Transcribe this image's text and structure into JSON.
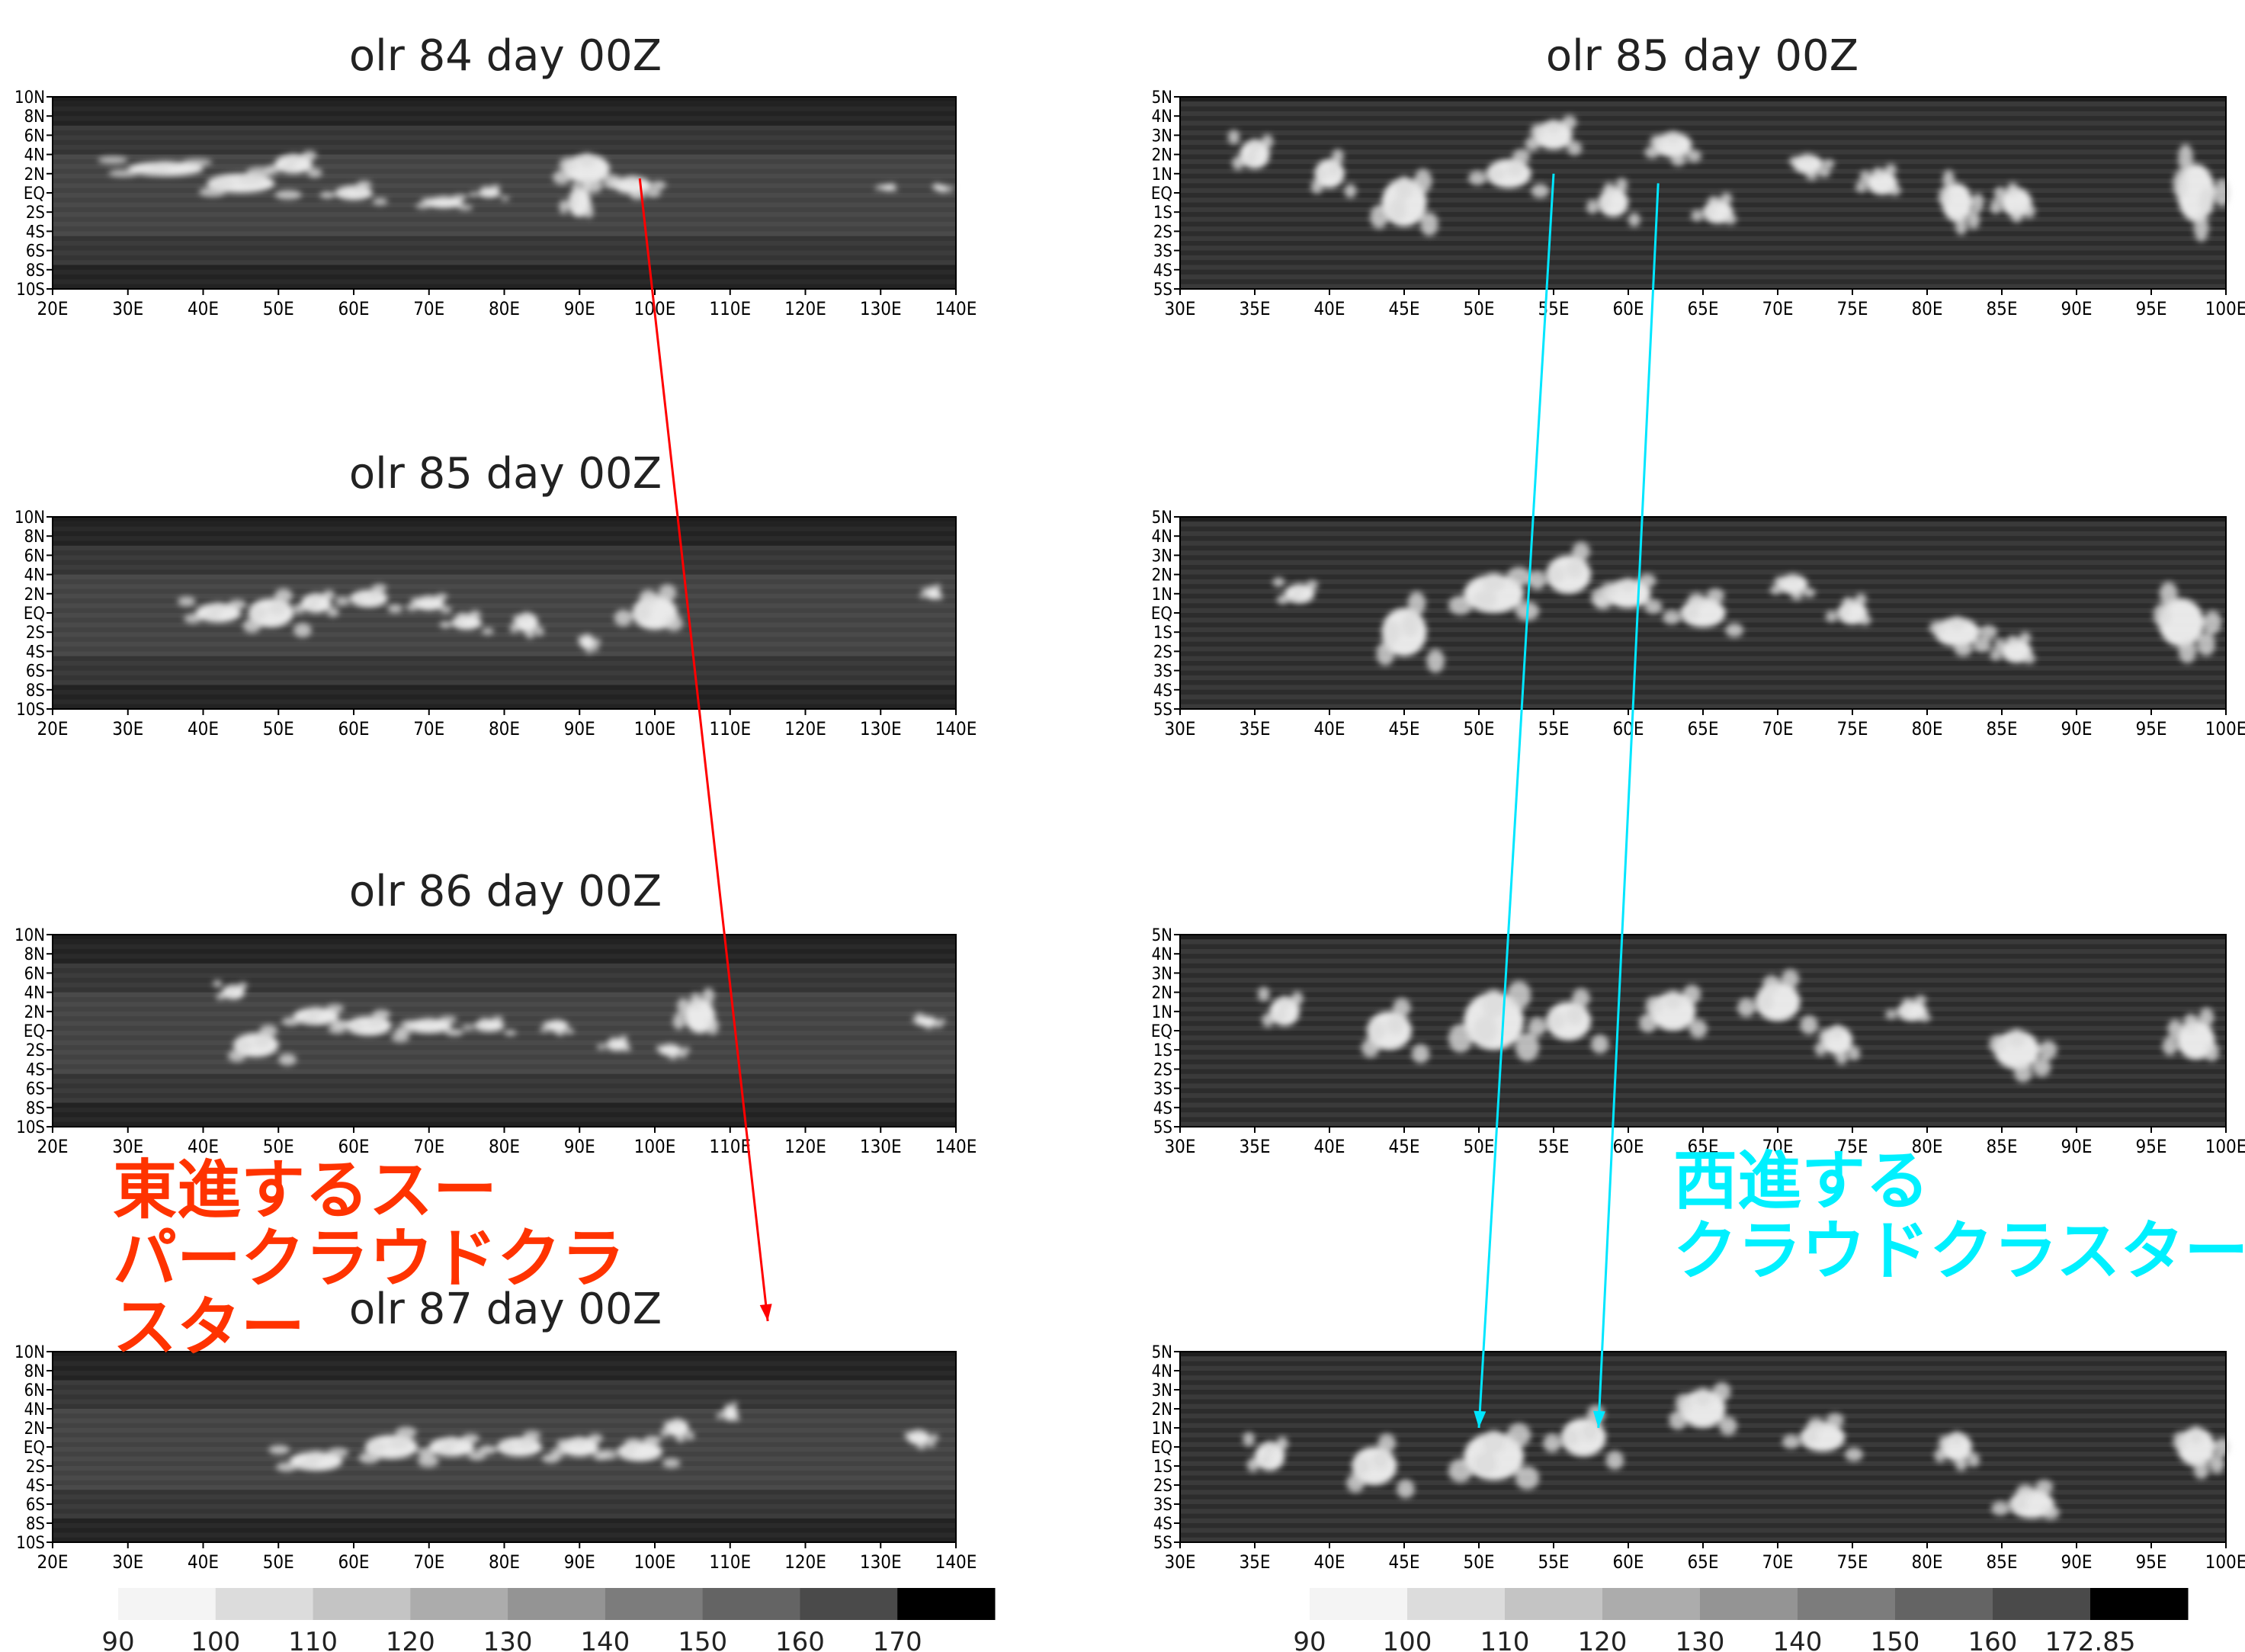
{
  "chart_data": {
    "type": "heatmap",
    "variable": "olr",
    "panels": [
      {
        "id": "L1",
        "title": "olr 84 day 00Z",
        "x_labels": [
          "20E",
          "30E",
          "40E",
          "50E",
          "60E",
          "70E",
          "80E",
          "90E",
          "100E",
          "110E",
          "120E",
          "130E",
          "140E"
        ],
        "y_labels": [
          "10N",
          "8N",
          "6N",
          "4N",
          "2N",
          "EQ",
          "2S",
          "4S",
          "6S",
          "8S",
          "10S"
        ],
        "xlim": [
          20,
          140
        ],
        "ylim": [
          -10,
          10
        ]
      },
      {
        "id": "L2",
        "title": "olr 85 day 00Z",
        "x_labels": [
          "20E",
          "30E",
          "40E",
          "50E",
          "60E",
          "70E",
          "80E",
          "90E",
          "100E",
          "110E",
          "120E",
          "130E",
          "140E"
        ],
        "y_labels": [
          "10N",
          "8N",
          "6N",
          "4N",
          "2N",
          "EQ",
          "2S",
          "4S",
          "6S",
          "8S",
          "10S"
        ],
        "xlim": [
          20,
          140
        ],
        "ylim": [
          -10,
          10
        ]
      },
      {
        "id": "L3",
        "title": "olr 86 day 00Z",
        "x_labels": [
          "20E",
          "30E",
          "40E",
          "50E",
          "60E",
          "70E",
          "80E",
          "90E",
          "100E",
          "110E",
          "120E",
          "130E",
          "140E"
        ],
        "y_labels": [
          "10N",
          "8N",
          "6N",
          "4N",
          "2N",
          "EQ",
          "2S",
          "4S",
          "6S",
          "8S",
          "10S"
        ],
        "xlim": [
          20,
          140
        ],
        "ylim": [
          -10,
          10
        ]
      },
      {
        "id": "L4",
        "title": "olr 87 day 00Z",
        "x_labels": [
          "20E",
          "30E",
          "40E",
          "50E",
          "60E",
          "70E",
          "80E",
          "90E",
          "100E",
          "110E",
          "120E",
          "130E",
          "140E"
        ],
        "y_labels": [
          "10N",
          "8N",
          "6N",
          "4N",
          "2N",
          "EQ",
          "2S",
          "4S",
          "6S",
          "8S",
          "10S"
        ],
        "xlim": [
          20,
          140
        ],
        "ylim": [
          -10,
          10
        ]
      },
      {
        "id": "R1",
        "title": "olr 85 day 00Z",
        "x_labels": [
          "30E",
          "35E",
          "40E",
          "45E",
          "50E",
          "55E",
          "60E",
          "65E",
          "70E",
          "75E",
          "80E",
          "85E",
          "90E",
          "95E",
          "100E"
        ],
        "y_labels": [
          "5N",
          "4N",
          "3N",
          "2N",
          "1N",
          "EQ",
          "1S",
          "2S",
          "3S",
          "4S",
          "5S"
        ],
        "xlim": [
          30,
          100
        ],
        "ylim": [
          -5,
          5
        ]
      },
      {
        "id": "R2",
        "title": "",
        "x_labels": [
          "30E",
          "35E",
          "40E",
          "45E",
          "50E",
          "55E",
          "60E",
          "65E",
          "70E",
          "75E",
          "80E",
          "85E",
          "90E",
          "95E",
          "100E"
        ],
        "y_labels": [
          "5N",
          "4N",
          "3N",
          "2N",
          "1N",
          "EQ",
          "1S",
          "2S",
          "3S",
          "4S",
          "5S"
        ],
        "xlim": [
          30,
          100
        ],
        "ylim": [
          -5,
          5
        ]
      },
      {
        "id": "R3",
        "title": "",
        "x_labels": [
          "30E",
          "35E",
          "40E",
          "45E",
          "50E",
          "55E",
          "60E",
          "65E",
          "70E",
          "75E",
          "80E",
          "85E",
          "90E",
          "95E",
          "100E"
        ],
        "y_labels": [
          "5N",
          "4N",
          "3N",
          "2N",
          "1N",
          "EQ",
          "1S",
          "2S",
          "3S",
          "4S",
          "5S"
        ],
        "xlim": [
          30,
          100
        ],
        "ylim": [
          -5,
          5
        ]
      },
      {
        "id": "R4",
        "title": "",
        "x_labels": [
          "30E",
          "35E",
          "40E",
          "45E",
          "50E",
          "55E",
          "60E",
          "65E",
          "70E",
          "75E",
          "80E",
          "85E",
          "90E",
          "95E",
          "100E"
        ],
        "y_labels": [
          "5N",
          "4N",
          "3N",
          "2N",
          "1N",
          "EQ",
          "1S",
          "2S",
          "3S",
          "4S",
          "5S"
        ],
        "xlim": [
          30,
          100
        ],
        "ylim": [
          -5,
          5
        ]
      }
    ],
    "colorbars": [
      {
        "id": "left",
        "labels": [
          "90",
          "100",
          "110",
          "120",
          "130",
          "140",
          "150",
          "160",
          "170"
        ],
        "colors": [
          "#f4f4f4",
          "#dcdcdc",
          "#c4c4c4",
          "#acacac",
          "#949494",
          "#7c7c7c",
          "#646464",
          "#4a4a4a",
          "#000000"
        ]
      },
      {
        "id": "right",
        "labels": [
          "90",
          "100",
          "110",
          "120",
          "130",
          "140",
          "150",
          "160",
          "172.85"
        ],
        "colors": [
          "#f4f4f4",
          "#dcdcdc",
          "#c4c4c4",
          "#acacac",
          "#949494",
          "#7c7c7c",
          "#646464",
          "#4a4a4a",
          "#000000"
        ]
      }
    ],
    "annotations": [
      {
        "id": "east",
        "lines": [
          "東進するスー",
          "パークラウドクラ",
          "スター"
        ],
        "color": "#ff3300"
      },
      {
        "id": "west",
        "lines": [
          "西進する",
          "クラウドクラスター"
        ],
        "color": "#00f0ff"
      }
    ],
    "arrows": [
      {
        "color": "#ff0000",
        "from": [
          98,
          1.5
        ],
        "to": [
          115,
          5
        ],
        "from_panel": "L1",
        "to_panel": "L4"
      },
      {
        "color": "#00e6ff",
        "from": [
          55,
          1
        ],
        "to": [
          50,
          1
        ],
        "from_panel": "R1",
        "to_panel": "R4"
      },
      {
        "color": "#00e6ff",
        "from": [
          62,
          0.5
        ],
        "to": [
          58,
          1
        ],
        "from_panel": "R1",
        "to_panel": "R4"
      }
    ],
    "clusters": {
      "L1": [
        [
          35,
          2.5,
          10,
          1.5
        ],
        [
          45,
          1,
          9,
          2
        ],
        [
          52,
          3,
          5,
          2
        ],
        [
          60,
          0,
          5,
          1.5
        ],
        [
          72,
          -1,
          5,
          1.2
        ],
        [
          78,
          0,
          3,
          1
        ],
        [
          91,
          2.5,
          6,
          3
        ],
        [
          90,
          -1,
          3,
          3
        ],
        [
          97,
          0.8,
          5,
          1.8
        ],
        [
          131,
          0.5,
          2,
          0.6
        ],
        [
          138,
          0.5,
          2,
          0.6
        ]
      ],
      "L2": [
        [
          42,
          0,
          6,
          2
        ],
        [
          49,
          0,
          6,
          3
        ],
        [
          55,
          1,
          4,
          2
        ],
        [
          62,
          1.5,
          5,
          1.8
        ],
        [
          70,
          1,
          4,
          1.5
        ],
        [
          75,
          -1,
          4,
          1.5
        ],
        [
          83,
          -1,
          3,
          2
        ],
        [
          100,
          0,
          6,
          3.5
        ],
        [
          91,
          -3,
          2,
          1.5
        ],
        [
          137,
          2,
          2,
          1.2
        ]
      ],
      "L3": [
        [
          44,
          4,
          3,
          1.5
        ],
        [
          47,
          -1.5,
          6,
          2.5
        ],
        [
          55,
          1.5,
          6,
          1.8
        ],
        [
          62,
          0.5,
          6,
          2
        ],
        [
          70,
          0.5,
          6,
          1.5
        ],
        [
          78,
          0.5,
          4,
          1.2
        ],
        [
          87,
          0.5,
          3,
          1.2
        ],
        [
          95,
          -1.5,
          3,
          1.2
        ],
        [
          102,
          -2,
          3,
          1.2
        ],
        [
          106,
          1.5,
          4,
          3.5
        ],
        [
          136,
          1,
          3,
          1
        ]
      ],
      "L4": [
        [
          55,
          -1.5,
          7,
          2
        ],
        [
          65,
          0,
          7,
          2.5
        ],
        [
          73,
          0,
          6,
          2
        ],
        [
          82,
          0,
          6,
          2
        ],
        [
          90,
          0,
          5,
          2
        ],
        [
          98,
          -0.5,
          6,
          2
        ],
        [
          103,
          2,
          3,
          1.8
        ],
        [
          110,
          3.5,
          2,
          1.5
        ],
        [
          135,
          1,
          3,
          1.5
        ]
      ],
      "R1": [
        [
          35,
          2,
          2,
          1.5
        ],
        [
          40,
          1,
          2,
          1.5
        ],
        [
          45,
          -0.5,
          3,
          2.5
        ],
        [
          52,
          1,
          3,
          1.5
        ],
        [
          55,
          3,
          2.5,
          1.5
        ],
        [
          59,
          -0.5,
          2,
          1.5
        ],
        [
          63,
          2.5,
          2.5,
          1.3
        ],
        [
          66,
          -1,
          2,
          1.2
        ],
        [
          72,
          1.5,
          2,
          1
        ],
        [
          77,
          0.5,
          2,
          1.2
        ],
        [
          82,
          -0.5,
          2,
          2
        ],
        [
          86,
          -0.5,
          2,
          1.5
        ],
        [
          98,
          0,
          2.5,
          3
        ]
      ],
      "R2": [
        [
          38,
          1,
          2,
          1
        ],
        [
          45,
          -1,
          3,
          2.5
        ],
        [
          51,
          1,
          4,
          2
        ],
        [
          56,
          2,
          3,
          2
        ],
        [
          60,
          1,
          3,
          1.5
        ],
        [
          65,
          0,
          3,
          1.5
        ],
        [
          71,
          1.5,
          2,
          1
        ],
        [
          75,
          0,
          2,
          1.2
        ],
        [
          82,
          -1,
          3,
          1.5
        ],
        [
          86,
          -2,
          2,
          1.2
        ],
        [
          97,
          -0.5,
          3,
          2.5
        ]
      ],
      "R3": [
        [
          37,
          1,
          2,
          1.5
        ],
        [
          44,
          0,
          3,
          2
        ],
        [
          51,
          0.5,
          4,
          3
        ],
        [
          56,
          0.5,
          3,
          2
        ],
        [
          63,
          1,
          3,
          2
        ],
        [
          70,
          1.5,
          3,
          2
        ],
        [
          74,
          -0.5,
          2,
          1.5
        ],
        [
          79,
          1,
          2,
          1
        ],
        [
          86,
          -1,
          3,
          2
        ],
        [
          98,
          -0.5,
          2.5,
          2
        ]
      ],
      "R4": [
        [
          36,
          -0.5,
          2,
          1.5
        ],
        [
          43,
          -1,
          3,
          2
        ],
        [
          51,
          -0.5,
          4,
          2.5
        ],
        [
          57,
          0.5,
          3,
          2
        ],
        [
          65,
          2,
          3,
          2
        ],
        [
          73,
          0.5,
          3,
          1.5
        ],
        [
          82,
          0,
          2,
          1.5
        ],
        [
          87,
          -3,
          3,
          1.5
        ],
        [
          98,
          0,
          2.5,
          2
        ]
      ]
    }
  }
}
